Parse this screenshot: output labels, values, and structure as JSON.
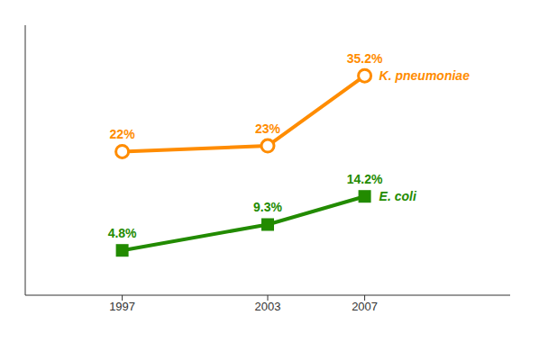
{
  "chart_data": {
    "type": "line",
    "x": [
      1997,
      2003,
      2007
    ],
    "series": [
      {
        "name": "E. coli",
        "color": "#228B00",
        "marker": "square",
        "values": [
          4.8,
          9.3,
          14.2
        ],
        "value_labels": [
          "4.8%",
          "9.3%",
          "14.2%"
        ]
      },
      {
        "name": "K. pneumoniae",
        "color": "#FF8C00",
        "marker": "circle",
        "values": [
          22.0,
          23.0,
          35.2
        ],
        "value_labels": [
          "22%",
          "23%",
          "35.2%"
        ]
      }
    ],
    "xlim": [
      1993,
      2013
    ],
    "xticks": [
      1997,
      2003,
      2007
    ],
    "ylim": [
      -3,
      44
    ],
    "data_labels": true,
    "tick_labels": "x",
    "grid": false
  }
}
